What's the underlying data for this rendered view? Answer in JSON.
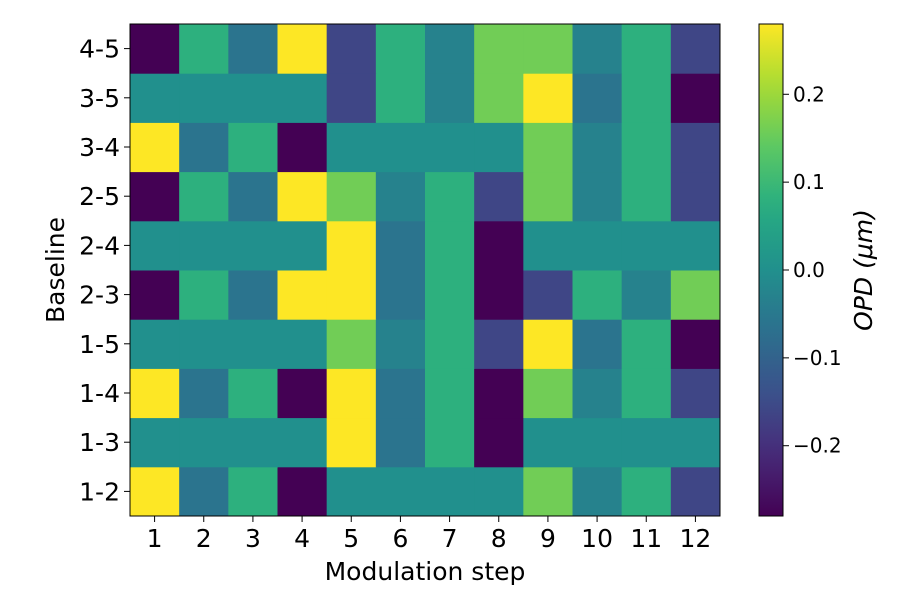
{
  "chart_data": {
    "type": "heatmap",
    "xlabel": "Modulation step",
    "ylabel": "Baseline",
    "x_categories": [
      "1",
      "2",
      "3",
      "4",
      "5",
      "6",
      "7",
      "8",
      "9",
      "10",
      "11",
      "12"
    ],
    "y_categories": [
      "1-2",
      "1-3",
      "1-4",
      "1-5",
      "2-3",
      "2-4",
      "2-5",
      "3-4",
      "3-5",
      "4-5"
    ],
    "values": [
      [
        0.28,
        -0.06,
        0.08,
        -0.28,
        0.0,
        0.0,
        0.0,
        0.0,
        0.16,
        -0.03,
        0.08,
        -0.16
      ],
      [
        0.0,
        0.0,
        0.0,
        0.0,
        0.28,
        -0.06,
        0.08,
        -0.28,
        0.0,
        0.0,
        0.0,
        0.0
      ],
      [
        0.28,
        -0.06,
        0.08,
        -0.28,
        0.28,
        -0.06,
        0.08,
        -0.28,
        0.16,
        -0.03,
        0.08,
        -0.16
      ],
      [
        0.0,
        0.0,
        0.0,
        0.0,
        0.16,
        -0.03,
        0.08,
        -0.16,
        0.28,
        -0.06,
        0.08,
        -0.28
      ],
      [
        -0.28,
        0.08,
        -0.06,
        0.28,
        0.28,
        -0.06,
        0.08,
        -0.28,
        -0.16,
        0.08,
        -0.03,
        0.16
      ],
      [
        0.0,
        0.0,
        0.0,
        0.0,
        0.28,
        -0.06,
        0.08,
        -0.28,
        0.0,
        0.0,
        0.0,
        0.0
      ],
      [
        -0.28,
        0.08,
        -0.06,
        0.28,
        0.16,
        -0.03,
        0.08,
        -0.16,
        0.16,
        -0.03,
        0.08,
        -0.16
      ],
      [
        0.28,
        -0.06,
        0.08,
        -0.28,
        0.0,
        0.0,
        0.0,
        0.0,
        0.16,
        -0.03,
        0.08,
        -0.16
      ],
      [
        0.0,
        0.0,
        0.0,
        0.0,
        -0.16,
        0.08,
        -0.03,
        0.16,
        0.28,
        -0.06,
        0.08,
        -0.28
      ],
      [
        -0.28,
        0.08,
        -0.06,
        0.28,
        -0.16,
        0.08,
        -0.03,
        0.16,
        0.16,
        -0.03,
        0.08,
        -0.16
      ]
    ],
    "colorbar": {
      "label": "OPD (μm)",
      "colormap": "viridis",
      "vmin": -0.28,
      "vmax": 0.28,
      "ticks": [
        -0.2,
        -0.1,
        0.0,
        0.1,
        0.2
      ],
      "tick_labels": [
        "−0.2",
        "−0.1",
        "0.0",
        "0.1",
        "0.2"
      ]
    }
  }
}
